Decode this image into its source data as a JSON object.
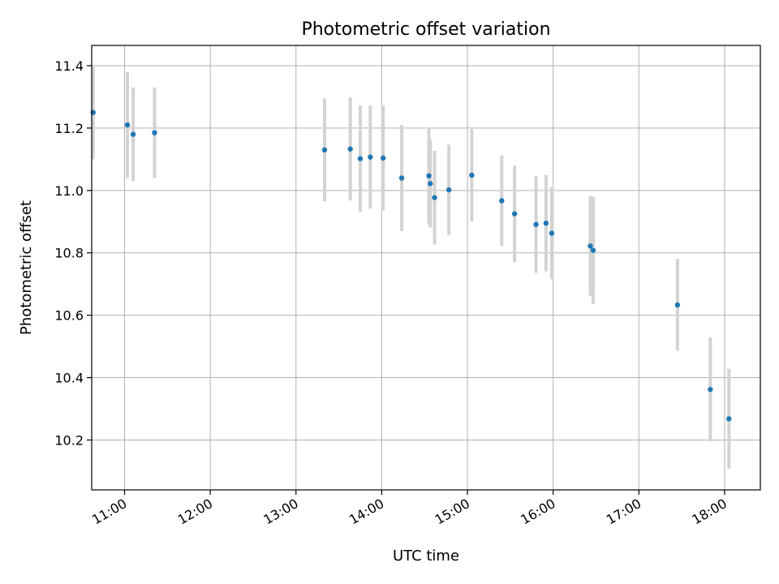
{
  "chart_data": {
    "type": "scatter",
    "title": "Photometric offset variation",
    "xlabel": "UTC time",
    "ylabel": "Photometric offset",
    "x_ticks": [
      "11:00",
      "12:00",
      "13:00",
      "14:00",
      "15:00",
      "16:00",
      "17:00",
      "18:00"
    ],
    "x_tick_values": [
      "11:00",
      "12:00",
      "13:00",
      "14:00",
      "15:00",
      "16:00",
      "17:00",
      "18:00"
    ],
    "y_ticks": [
      "10.2",
      "10.4",
      "10.6",
      "10.8",
      "11.0",
      "11.2",
      "11.4"
    ],
    "y_tick_values": [
      10.2,
      10.4,
      10.6,
      10.8,
      11.0,
      11.2,
      11.4
    ],
    "xlim": [
      "10:37",
      "18:25"
    ],
    "ylim": [
      10.04,
      11.465
    ],
    "grid": true,
    "colors": {
      "point": "#1f77b4",
      "errorbar": "#d3d3d3",
      "grid": "#b0b0b0"
    },
    "points": [
      {
        "time": "10:38",
        "y": 11.25,
        "err": 0.15
      },
      {
        "time": "11:02",
        "y": 11.21,
        "err": 0.17
      },
      {
        "time": "11:06",
        "y": 11.18,
        "err": 0.15
      },
      {
        "time": "11:21",
        "y": 11.185,
        "err": 0.145
      },
      {
        "time": "13:20",
        "y": 11.13,
        "err": 0.165
      },
      {
        "time": "13:38",
        "y": 11.133,
        "err": 0.165
      },
      {
        "time": "13:45",
        "y": 11.102,
        "err": 0.17
      },
      {
        "time": "13:52",
        "y": 11.107,
        "err": 0.165
      },
      {
        "time": "14:01",
        "y": 11.104,
        "err": 0.168
      },
      {
        "time": "14:14",
        "y": 11.04,
        "err": 0.17
      },
      {
        "time": "14:33",
        "y": 11.047,
        "err": 0.155
      },
      {
        "time": "14:34",
        "y": 11.022,
        "err": 0.14
      },
      {
        "time": "14:37",
        "y": 10.977,
        "err": 0.15
      },
      {
        "time": "14:47",
        "y": 11.002,
        "err": 0.145
      },
      {
        "time": "15:03",
        "y": 11.049,
        "err": 0.148
      },
      {
        "time": "15:24",
        "y": 10.967,
        "err": 0.145
      },
      {
        "time": "15:33",
        "y": 10.925,
        "err": 0.155
      },
      {
        "time": "15:48",
        "y": 10.891,
        "err": 0.155
      },
      {
        "time": "15:55",
        "y": 10.895,
        "err": 0.155
      },
      {
        "time": "15:59",
        "y": 10.863,
        "err": 0.148
      },
      {
        "time": "16:26",
        "y": 10.822,
        "err": 0.16
      },
      {
        "time": "16:28",
        "y": 10.808,
        "err": 0.172
      },
      {
        "time": "17:27",
        "y": 10.633,
        "err": 0.147
      },
      {
        "time": "17:50",
        "y": 10.362,
        "err": 0.167
      },
      {
        "time": "18:03",
        "y": 10.268,
        "err": 0.16
      }
    ]
  }
}
